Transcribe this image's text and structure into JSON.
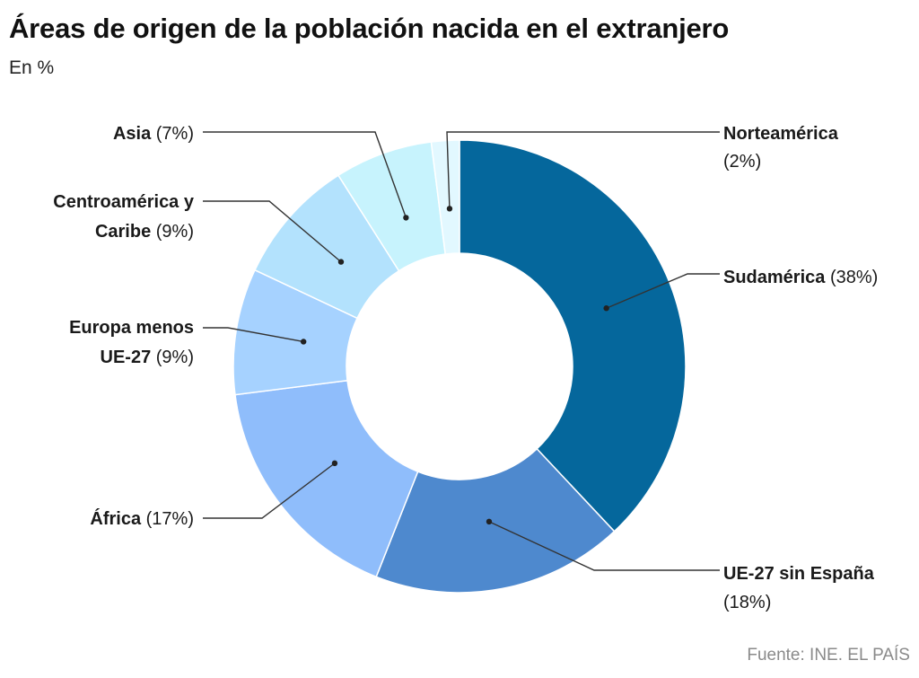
{
  "title": "Áreas de origen de la población nacida en el extranjero",
  "subtitle": "En %",
  "source": "Fuente: INE. EL PAÍS",
  "chart_data": {
    "type": "pie",
    "donut": true,
    "unit": "%",
    "slices": [
      {
        "label": "Sudamérica",
        "value": 38,
        "value_label": "(38%)",
        "color": "#05679c"
      },
      {
        "label": "UE-27 sin España",
        "value": 18,
        "value_label": "(18%)",
        "color": "#4e89ce"
      },
      {
        "label": "África",
        "value": 17,
        "value_label": "(17%)",
        "color": "#8fbdfb"
      },
      {
        "label": "Europa menos UE-27",
        "value": 9,
        "value_label": "(9%)",
        "color": "#a6d2ff"
      },
      {
        "label": "Centroamérica y Caribe",
        "value": 9,
        "value_label": "(9%)",
        "color": "#b3e2fd"
      },
      {
        "label": "Asia",
        "value": 7,
        "value_label": "(7%)",
        "color": "#c7f3fd"
      },
      {
        "label": "Norteamérica",
        "value": 2,
        "value_label": "(2%)",
        "color": "#e2f8ff"
      }
    ]
  }
}
